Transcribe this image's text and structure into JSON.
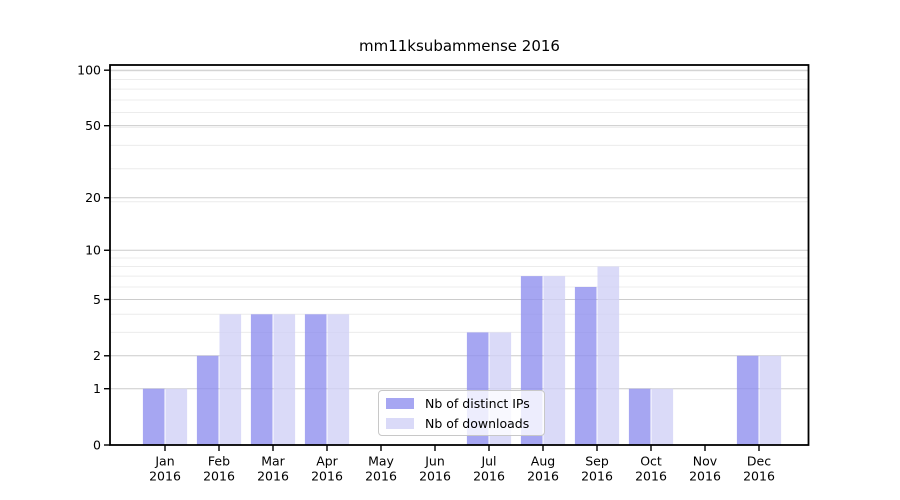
{
  "chart_data": {
    "type": "bar",
    "title": "mm11ksubammense 2016",
    "year": "2016",
    "months": [
      "Jan",
      "Feb",
      "Mar",
      "Apr",
      "May",
      "Jun",
      "Jul",
      "Aug",
      "Sep",
      "Oct",
      "Nov",
      "Dec"
    ],
    "series": [
      {
        "name": "Nb of distinct IPs",
        "color": "#a6a6f2",
        "values": [
          1,
          2,
          4,
          4,
          0,
          0,
          3,
          7,
          6,
          1,
          0,
          2
        ]
      },
      {
        "name": "Nb of downloads",
        "color": "#dadaf8",
        "values": [
          1,
          4,
          4,
          4,
          0,
          0,
          3,
          7,
          8,
          1,
          0,
          2
        ]
      }
    ],
    "yscale": "log1p",
    "y_ticks": [
      0,
      1,
      2,
      5,
      10,
      20,
      50,
      100
    ],
    "y_minor_ticks": [
      3,
      4,
      6,
      7,
      8,
      9,
      19,
      29,
      39,
      49,
      59,
      69,
      79,
      89,
      99
    ],
    "ylim": [
      0,
      110
    ],
    "grid": true,
    "legend_position": "inside-bottom-center",
    "colors": {
      "grid_major": "#cccccc",
      "grid_minor": "#ececec",
      "spine": "#000000",
      "tick_text": "#000000"
    }
  }
}
